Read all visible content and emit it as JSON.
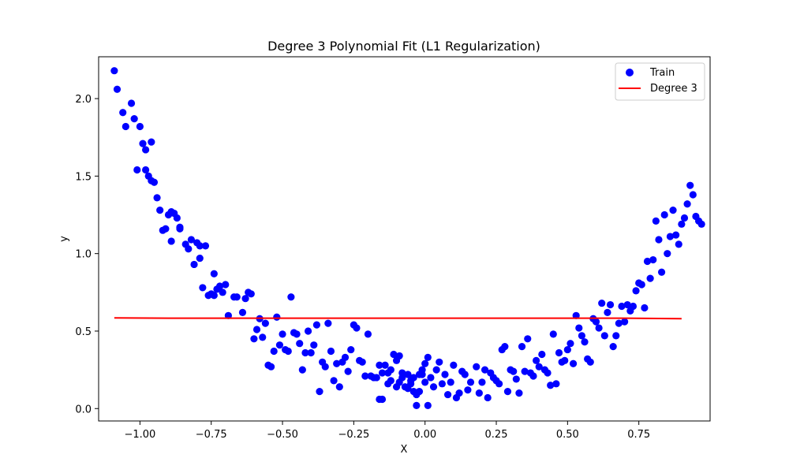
{
  "chart_data": {
    "type": "scatter",
    "title": "Degree 3 Polynomial Fit (L1 Regularization)",
    "xlabel": "X",
    "ylabel": "y",
    "xlim": [
      -1.145,
      1.0
    ],
    "ylim": [
      -0.08,
      2.27
    ],
    "xticks": [
      -1.0,
      -0.75,
      -0.5,
      -0.25,
      0.0,
      0.25,
      0.5,
      0.75
    ],
    "xtick_labels": [
      "−1.00",
      "−0.75",
      "−0.50",
      "−0.25",
      "0.00",
      "0.25",
      "0.50",
      "0.75"
    ],
    "yticks": [
      0.0,
      0.5,
      1.0,
      1.5,
      2.0
    ],
    "ytick_labels": [
      "0.0",
      "0.5",
      "1.0",
      "1.5",
      "2.0"
    ],
    "grid": false,
    "legend": {
      "position": "top-right",
      "entries": [
        "Train",
        "Degree 3"
      ]
    },
    "series": [
      {
        "name": "Train",
        "kind": "scatter",
        "color": "#0000ff",
        "points": [
          [
            -1.09,
            2.18
          ],
          [
            -1.08,
            2.06
          ],
          [
            -1.06,
            1.91
          ],
          [
            -1.05,
            1.82
          ],
          [
            -1.03,
            1.97
          ],
          [
            -1.02,
            1.87
          ],
          [
            -1.01,
            1.54
          ],
          [
            -1.0,
            1.82
          ],
          [
            -0.99,
            1.71
          ],
          [
            -0.98,
            1.67
          ],
          [
            -0.98,
            1.54
          ],
          [
            -0.97,
            1.5
          ],
          [
            -0.96,
            1.72
          ],
          [
            -0.96,
            1.47
          ],
          [
            -0.95,
            1.46
          ],
          [
            -0.94,
            1.36
          ],
          [
            -0.93,
            1.28
          ],
          [
            -0.92,
            1.15
          ],
          [
            -0.91,
            1.16
          ],
          [
            -0.9,
            1.25
          ],
          [
            -0.89,
            1.08
          ],
          [
            -0.89,
            1.27
          ],
          [
            -0.88,
            1.26
          ],
          [
            -0.87,
            1.23
          ],
          [
            -0.86,
            1.16
          ],
          [
            -0.86,
            1.17
          ],
          [
            -0.84,
            1.06
          ],
          [
            -0.83,
            1.03
          ],
          [
            -0.82,
            1.09
          ],
          [
            -0.81,
            0.93
          ],
          [
            -0.8,
            1.07
          ],
          [
            -0.79,
            1.05
          ],
          [
            -0.79,
            0.97
          ],
          [
            -0.78,
            0.78
          ],
          [
            -0.77,
            1.05
          ],
          [
            -0.76,
            0.73
          ],
          [
            -0.75,
            0.74
          ],
          [
            -0.74,
            0.87
          ],
          [
            -0.74,
            0.73
          ],
          [
            -0.73,
            0.77
          ],
          [
            -0.72,
            0.79
          ],
          [
            -0.71,
            0.75
          ],
          [
            -0.7,
            0.8
          ],
          [
            -0.69,
            0.6
          ],
          [
            -0.67,
            0.72
          ],
          [
            -0.66,
            0.72
          ],
          [
            -0.64,
            0.62
          ],
          [
            -0.63,
            0.71
          ],
          [
            -0.62,
            0.75
          ],
          [
            -0.61,
            0.74
          ],
          [
            -0.6,
            0.45
          ],
          [
            -0.59,
            0.51
          ],
          [
            -0.58,
            0.58
          ],
          [
            -0.57,
            0.46
          ],
          [
            -0.56,
            0.55
          ],
          [
            -0.55,
            0.28
          ],
          [
            -0.54,
            0.27
          ],
          [
            -0.53,
            0.37
          ],
          [
            -0.52,
            0.59
          ],
          [
            -0.51,
            0.41
          ],
          [
            -0.5,
            0.48
          ],
          [
            -0.49,
            0.38
          ],
          [
            -0.48,
            0.37
          ],
          [
            -0.47,
            0.72
          ],
          [
            -0.46,
            0.49
          ],
          [
            -0.45,
            0.48
          ],
          [
            -0.44,
            0.42
          ],
          [
            -0.43,
            0.25
          ],
          [
            -0.42,
            0.36
          ],
          [
            -0.41,
            0.5
          ],
          [
            -0.4,
            0.36
          ],
          [
            -0.39,
            0.41
          ],
          [
            -0.38,
            0.54
          ],
          [
            -0.37,
            0.11
          ],
          [
            -0.36,
            0.3
          ],
          [
            -0.35,
            0.27
          ],
          [
            -0.34,
            0.55
          ],
          [
            -0.33,
            0.37
          ],
          [
            -0.32,
            0.18
          ],
          [
            -0.31,
            0.29
          ],
          [
            -0.3,
            0.14
          ],
          [
            -0.29,
            0.3
          ],
          [
            -0.28,
            0.33
          ],
          [
            -0.27,
            0.24
          ],
          [
            -0.26,
            0.38
          ],
          [
            -0.25,
            0.54
          ],
          [
            -0.24,
            0.52
          ],
          [
            -0.23,
            0.31
          ],
          [
            -0.22,
            0.3
          ],
          [
            -0.21,
            0.21
          ],
          [
            -0.2,
            0.48
          ],
          [
            -0.19,
            0.21
          ],
          [
            -0.18,
            0.2
          ],
          [
            -0.17,
            0.2
          ],
          [
            -0.16,
            0.06
          ],
          [
            -0.15,
            0.23
          ],
          [
            -0.14,
            0.28
          ],
          [
            -0.13,
            0.16
          ],
          [
            -0.12,
            0.18
          ],
          [
            -0.11,
            0.35
          ],
          [
            -0.1,
            0.14
          ],
          [
            -0.09,
            0.17
          ],
          [
            -0.08,
            0.2
          ],
          [
            -0.07,
            0.14
          ],
          [
            -0.06,
            0.13
          ],
          [
            -0.05,
            0.18
          ],
          [
            -0.04,
            0.2
          ],
          [
            -0.03,
            0.09
          ],
          [
            -0.02,
            0.11
          ],
          [
            -0.01,
            0.22
          ],
          [
            0.0,
            0.17
          ],
          [
            0.01,
            0.33
          ],
          [
            -0.15,
            0.06
          ],
          [
            -0.16,
            0.28
          ],
          [
            -0.13,
            0.23
          ],
          [
            -0.12,
            0.25
          ],
          [
            -0.1,
            0.31
          ],
          [
            -0.09,
            0.34
          ],
          [
            -0.08,
            0.23
          ],
          [
            -0.06,
            0.22
          ],
          [
            -0.05,
            0.16
          ],
          [
            -0.04,
            0.11
          ],
          [
            -0.03,
            0.02
          ],
          [
            -0.02,
            0.22
          ],
          [
            -0.01,
            0.25
          ],
          [
            0.0,
            0.29
          ],
          [
            0.01,
            0.02
          ],
          [
            0.02,
            0.2
          ],
          [
            0.03,
            0.14
          ],
          [
            0.04,
            0.25
          ],
          [
            0.05,
            0.3
          ],
          [
            0.06,
            0.16
          ],
          [
            0.07,
            0.22
          ],
          [
            0.08,
            0.09
          ],
          [
            0.09,
            0.17
          ],
          [
            0.1,
            0.28
          ],
          [
            0.11,
            0.07
          ],
          [
            0.12,
            0.1
          ],
          [
            0.13,
            0.24
          ],
          [
            0.14,
            0.22
          ],
          [
            0.15,
            0.12
          ],
          [
            0.16,
            0.17
          ],
          [
            0.18,
            0.27
          ],
          [
            0.19,
            0.1
          ],
          [
            0.2,
            0.17
          ],
          [
            0.21,
            0.25
          ],
          [
            0.22,
            0.07
          ],
          [
            0.23,
            0.23
          ],
          [
            0.24,
            0.2
          ],
          [
            0.25,
            0.18
          ],
          [
            0.26,
            0.16
          ],
          [
            0.27,
            0.38
          ],
          [
            0.28,
            0.4
          ],
          [
            0.29,
            0.11
          ],
          [
            0.3,
            0.25
          ],
          [
            0.31,
            0.24
          ],
          [
            0.32,
            0.19
          ],
          [
            0.33,
            0.1
          ],
          [
            0.34,
            0.4
          ],
          [
            0.35,
            0.24
          ],
          [
            0.36,
            0.45
          ],
          [
            0.37,
            0.23
          ],
          [
            0.38,
            0.21
          ],
          [
            0.39,
            0.31
          ],
          [
            0.4,
            0.27
          ],
          [
            0.41,
            0.35
          ],
          [
            0.42,
            0.25
          ],
          [
            0.43,
            0.23
          ],
          [
            0.44,
            0.15
          ],
          [
            0.45,
            0.48
          ],
          [
            0.46,
            0.16
          ],
          [
            0.47,
            0.36
          ],
          [
            0.48,
            0.3
          ],
          [
            0.49,
            0.31
          ],
          [
            0.5,
            0.38
          ],
          [
            0.51,
            0.42
          ],
          [
            0.52,
            0.29
          ],
          [
            0.53,
            0.6
          ],
          [
            0.54,
            0.52
          ],
          [
            0.55,
            0.47
          ],
          [
            0.56,
            0.43
          ],
          [
            0.57,
            0.32
          ],
          [
            0.58,
            0.3
          ],
          [
            0.59,
            0.58
          ],
          [
            0.6,
            0.56
          ],
          [
            0.61,
            0.52
          ],
          [
            0.62,
            0.68
          ],
          [
            0.63,
            0.47
          ],
          [
            0.64,
            0.62
          ],
          [
            0.65,
            0.67
          ],
          [
            0.66,
            0.4
          ],
          [
            0.67,
            0.47
          ],
          [
            0.68,
            0.55
          ],
          [
            0.69,
            0.66
          ],
          [
            0.7,
            0.56
          ],
          [
            0.71,
            0.67
          ],
          [
            0.72,
            0.63
          ],
          [
            0.73,
            0.66
          ],
          [
            0.74,
            0.76
          ],
          [
            0.75,
            0.81
          ],
          [
            0.76,
            0.8
          ],
          [
            0.77,
            0.65
          ],
          [
            0.78,
            0.95
          ],
          [
            0.79,
            0.84
          ],
          [
            0.8,
            0.96
          ],
          [
            0.81,
            1.21
          ],
          [
            0.82,
            1.09
          ],
          [
            0.83,
            0.88
          ],
          [
            0.84,
            1.25
          ],
          [
            0.85,
            1.0
          ],
          [
            0.86,
            1.11
          ],
          [
            0.87,
            1.28
          ],
          [
            0.88,
            1.12
          ],
          [
            0.89,
            1.06
          ],
          [
            0.9,
            1.19
          ],
          [
            0.91,
            1.23
          ],
          [
            0.92,
            1.32
          ],
          [
            0.93,
            1.44
          ],
          [
            0.94,
            1.38
          ],
          [
            0.95,
            1.24
          ],
          [
            0.96,
            1.21
          ],
          [
            0.97,
            1.19
          ]
        ]
      },
      {
        "name": "Degree 3",
        "kind": "line",
        "color": "#ff0000",
        "x": [
          -1.09,
          -0.9,
          -0.7,
          -0.5,
          -0.3,
          -0.1,
          0.1,
          0.3,
          0.5,
          0.7,
          0.9
        ],
        "y": [
          0.585,
          0.583,
          0.583,
          0.583,
          0.583,
          0.583,
          0.583,
          0.583,
          0.583,
          0.583,
          0.58
        ]
      }
    ]
  }
}
